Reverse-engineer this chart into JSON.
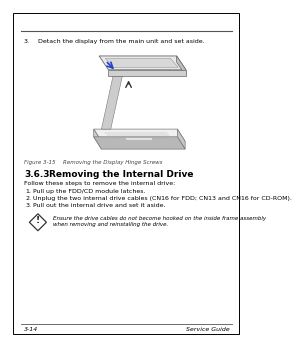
{
  "page_bg": "#ffffff",
  "border_color": "#000000",
  "top_rule_color": "#555555",
  "footer_rule_color": "#555555",
  "page_number": "3-14",
  "footer_right": "Service Guide",
  "step3_text_num": "3.",
  "step3_text_body": "Detach the display from the main unit and set aside.",
  "figure_caption_label": "Figure 3-15",
  "figure_caption_text": "Removing the Display Hinge Screws",
  "section_number": "3.6.3",
  "section_title": "Removing the Internal Drive",
  "intro_text": "Follow these steps to remove the internal drive:",
  "steps": [
    [
      "1.",
      "Pull up the FDD/CD module latches."
    ],
    [
      "2.",
      "Unplug the two internal drive cables (CN16 for FDD; CN13 and CN16 for CD-ROM)."
    ],
    [
      "3.",
      "Pull out the internal drive and set it aside."
    ]
  ],
  "caution_line1": "Ensure the drive cables do not become hooked on the inside frame assembly",
  "caution_line2": "when removing and reinstalling the drive.",
  "text_color": "#000000",
  "caption_color": "#444444",
  "diagram_laptop_face": "#e8e8e8",
  "diagram_laptop_dark": "#c0c0c0",
  "diagram_laptop_edge": "#666666",
  "diagram_screen_face": "#f0f0f0",
  "diagram_arrow_blue": "#2244cc",
  "diagram_arrow_dark": "#333333"
}
